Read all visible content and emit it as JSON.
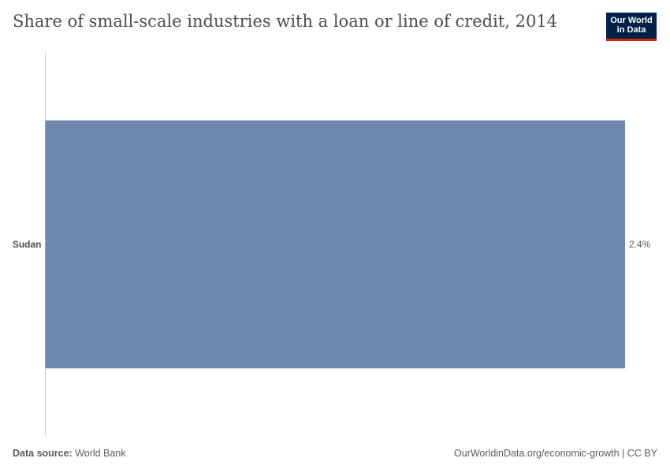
{
  "header": {
    "title": "Share of small-scale industries with a loan or line of credit, 2014",
    "logo_line1": "Our World",
    "logo_line2": "in Data"
  },
  "chart_data": {
    "type": "bar",
    "orientation": "horizontal",
    "categories": [
      "Sudan"
    ],
    "values": [
      2.4
    ],
    "value_labels": [
      "2.4%"
    ],
    "unit": "%",
    "xlim": [
      0,
      2.4
    ],
    "grid": false,
    "bar_color": "#6f88b0",
    "title": "Share of small-scale industries with a loan or line of credit, 2014"
  },
  "footer": {
    "source_label": "Data source:",
    "source_value": "World Bank",
    "link_text": "OurWorldinData.org/economic-growth | CC BY"
  }
}
